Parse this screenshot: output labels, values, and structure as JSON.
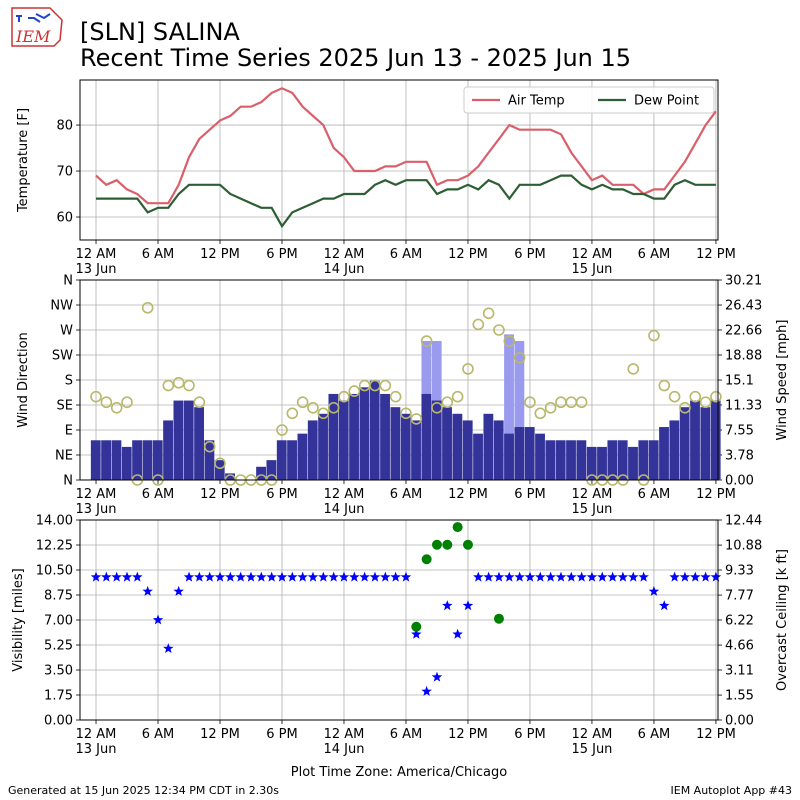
{
  "header": {
    "logo": "IEM",
    "title": "[SLN] SALINA",
    "subtitle": "Recent Time Series 2025 Jun 13 - 2025 Jun 15"
  },
  "footer": {
    "left": "Generated at 15 Jun 2025 12:34 PM CDT in 2.30s",
    "right": "IEM Autoplot App #43"
  },
  "chart_data": [
    {
      "type": "line",
      "ylabel": "Temperature [F]",
      "grid": true,
      "legend": "upper right",
      "xlim": [
        "2025-06-12 22:27",
        "2025-06-15 12:12"
      ],
      "xticks": [
        {
          "value": "2025-06-13 00:00",
          "label": "12 AM\n13 Jun"
        },
        {
          "value": "2025-06-13 06:00",
          "label": "6 AM"
        },
        {
          "value": "2025-06-13 12:00",
          "label": "12 PM"
        },
        {
          "value": "2025-06-13 18:00",
          "label": "6 PM"
        },
        {
          "value": "2025-06-14 00:00",
          "label": "12 AM\n14 Jun"
        },
        {
          "value": "2025-06-14 06:00",
          "label": "6 AM"
        },
        {
          "value": "2025-06-14 12:00",
          "label": "12 PM"
        },
        {
          "value": "2025-06-14 18:00",
          "label": "6 PM"
        },
        {
          "value": "2025-06-15 00:00",
          "label": "12 AM\n15 Jun"
        },
        {
          "value": "2025-06-15 06:00",
          "label": "6 AM"
        },
        {
          "value": "2025-06-15 12:00",
          "label": "12 PM"
        }
      ],
      "ylim": [
        55,
        89.8
      ],
      "yticks": [
        60,
        70,
        80
      ],
      "x": [
        "2025-06-13 00:00",
        "2025-06-13 01:00",
        "2025-06-13 02:00",
        "2025-06-13 03:00",
        "2025-06-13 04:00",
        "2025-06-13 05:00",
        "2025-06-13 06:00",
        "2025-06-13 07:00",
        "2025-06-13 08:00",
        "2025-06-13 09:00",
        "2025-06-13 10:00",
        "2025-06-13 11:00",
        "2025-06-13 12:00",
        "2025-06-13 13:00",
        "2025-06-13 14:00",
        "2025-06-13 15:00",
        "2025-06-13 16:00",
        "2025-06-13 17:00",
        "2025-06-13 18:00",
        "2025-06-13 19:00",
        "2025-06-13 20:00",
        "2025-06-13 21:00",
        "2025-06-13 22:00",
        "2025-06-13 23:00",
        "2025-06-14 00:00",
        "2025-06-14 01:00",
        "2025-06-14 02:00",
        "2025-06-14 03:00",
        "2025-06-14 04:00",
        "2025-06-14 05:00",
        "2025-06-14 06:00",
        "2025-06-14 07:00",
        "2025-06-14 08:00",
        "2025-06-14 09:00",
        "2025-06-14 10:00",
        "2025-06-14 11:00",
        "2025-06-14 12:00",
        "2025-06-14 13:00",
        "2025-06-14 14:00",
        "2025-06-14 15:00",
        "2025-06-14 16:00",
        "2025-06-14 17:00",
        "2025-06-14 18:00",
        "2025-06-14 19:00",
        "2025-06-14 20:00",
        "2025-06-14 21:00",
        "2025-06-14 22:00",
        "2025-06-14 23:00",
        "2025-06-15 00:00",
        "2025-06-15 01:00",
        "2025-06-15 02:00",
        "2025-06-15 03:00",
        "2025-06-15 04:00",
        "2025-06-15 05:00",
        "2025-06-15 06:00",
        "2025-06-15 07:00",
        "2025-06-15 08:00",
        "2025-06-15 09:00",
        "2025-06-15 10:00",
        "2025-06-15 11:00",
        "2025-06-15 12:00"
      ],
      "series": [
        {
          "name": "Air Temp",
          "color": "#d9606a",
          "type": "line",
          "values": [
            69,
            67,
            68,
            66,
            65,
            63,
            63,
            63,
            67,
            73,
            77,
            79,
            81,
            82,
            84,
            84,
            85,
            87,
            88,
            87,
            84,
            82,
            80,
            75,
            73,
            70,
            70,
            70,
            71,
            71,
            72,
            72,
            72,
            67,
            68,
            68,
            69,
            71,
            74,
            77,
            80,
            79,
            79,
            79,
            79,
            78,
            74,
            71,
            68,
            69,
            67,
            67,
            67,
            65,
            66,
            66,
            69,
            72,
            76,
            80,
            83
          ]
        },
        {
          "name": "Dew Point",
          "color": "#2e5e34",
          "type": "line",
          "values": [
            64,
            64,
            64,
            64,
            64,
            61,
            62,
            62,
            65,
            67,
            67,
            67,
            67,
            65,
            64,
            63,
            62,
            62,
            58,
            61,
            62,
            63,
            64,
            64,
            65,
            65,
            65,
            67,
            68,
            67,
            68,
            68,
            68,
            65,
            66,
            66,
            67,
            66,
            68,
            67,
            64,
            67,
            67,
            67,
            68,
            69,
            69,
            67,
            66,
            67,
            66,
            66,
            65,
            65,
            64,
            64,
            67,
            68,
            67,
            67,
            67
          ]
        }
      ]
    },
    {
      "type": "combo",
      "ylabel": "Wind Direction",
      "y2label": "Wind Speed [mph]",
      "grid": true,
      "xlim": [
        "2025-06-12 22:27",
        "2025-06-15 12:12"
      ],
      "xticks": [
        {
          "value": "2025-06-13 00:00",
          "label": "12 AM\n13 Jun"
        },
        {
          "value": "2025-06-13 06:00",
          "label": "6 AM"
        },
        {
          "value": "2025-06-13 12:00",
          "label": "12 PM"
        },
        {
          "value": "2025-06-13 18:00",
          "label": "6 PM"
        },
        {
          "value": "2025-06-14 00:00",
          "label": "12 AM\n14 Jun"
        },
        {
          "value": "2025-06-14 06:00",
          "label": "6 AM"
        },
        {
          "value": "2025-06-14 12:00",
          "label": "12 PM"
        },
        {
          "value": "2025-06-14 18:00",
          "label": "6 PM"
        },
        {
          "value": "2025-06-15 00:00",
          "label": "12 AM\n15 Jun"
        },
        {
          "value": "2025-06-15 06:00",
          "label": "6 AM"
        },
        {
          "value": "2025-06-15 12:00",
          "label": "12 PM"
        }
      ],
      "ylim": [
        0,
        360
      ],
      "yticks": [
        {
          "value": 0,
          "label": "N"
        },
        {
          "value": 45,
          "label": "NE"
        },
        {
          "value": 90,
          "label": "E"
        },
        {
          "value": 135,
          "label": "SE"
        },
        {
          "value": 180,
          "label": "S"
        },
        {
          "value": 225,
          "label": "SW"
        },
        {
          "value": 270,
          "label": "W"
        },
        {
          "value": 315,
          "label": "NW"
        },
        {
          "value": 360,
          "label": "N"
        }
      ],
      "y2lim": [
        0,
        30.21
      ],
      "y2ticks": [
        {
          "value": 0,
          "label": "0.00"
        },
        3.78,
        7.55,
        11.33,
        15.1,
        18.88,
        22.66,
        26.43,
        30.21
      ],
      "x": [
        "2025-06-13 00:00",
        "2025-06-13 01:00",
        "2025-06-13 02:00",
        "2025-06-13 03:00",
        "2025-06-13 04:00",
        "2025-06-13 05:00",
        "2025-06-13 06:00",
        "2025-06-13 07:00",
        "2025-06-13 08:00",
        "2025-06-13 09:00",
        "2025-06-13 10:00",
        "2025-06-13 11:00",
        "2025-06-13 12:00",
        "2025-06-13 13:00",
        "2025-06-13 14:00",
        "2025-06-13 15:00",
        "2025-06-13 16:00",
        "2025-06-13 17:00",
        "2025-06-13 18:00",
        "2025-06-13 19:00",
        "2025-06-13 20:00",
        "2025-06-13 21:00",
        "2025-06-13 22:00",
        "2025-06-13 23:00",
        "2025-06-14 00:00",
        "2025-06-14 01:00",
        "2025-06-14 02:00",
        "2025-06-14 03:00",
        "2025-06-14 04:00",
        "2025-06-14 05:00",
        "2025-06-14 06:00",
        "2025-06-14 07:00",
        "2025-06-14 08:00",
        "2025-06-14 09:00",
        "2025-06-14 10:00",
        "2025-06-14 11:00",
        "2025-06-14 12:00",
        "2025-06-14 13:00",
        "2025-06-14 14:00",
        "2025-06-14 15:00",
        "2025-06-14 16:00",
        "2025-06-14 17:00",
        "2025-06-14 18:00",
        "2025-06-14 19:00",
        "2025-06-14 20:00",
        "2025-06-14 21:00",
        "2025-06-14 22:00",
        "2025-06-14 23:00",
        "2025-06-15 00:00",
        "2025-06-15 01:00",
        "2025-06-15 02:00",
        "2025-06-15 03:00",
        "2025-06-15 04:00",
        "2025-06-15 05:00",
        "2025-06-15 06:00",
        "2025-06-15 07:00",
        "2025-06-15 08:00",
        "2025-06-15 09:00",
        "2025-06-15 10:00",
        "2025-06-15 11:00",
        "2025-06-15 12:00"
      ],
      "series": [
        {
          "color": "#9a9aee",
          "type": "bar",
          "axis": "y2",
          "values": [
            null,
            null,
            null,
            null,
            null,
            null,
            null,
            null,
            null,
            null,
            null,
            null,
            null,
            null,
            null,
            null,
            null,
            null,
            null,
            null,
            null,
            null,
            null,
            null,
            null,
            null,
            null,
            null,
            null,
            null,
            null,
            null,
            21,
            21,
            null,
            null,
            null,
            null,
            null,
            null,
            22,
            21,
            null,
            null,
            null,
            null,
            null,
            null,
            null,
            null,
            null,
            null,
            null,
            null,
            null,
            null,
            null,
            null,
            null,
            null,
            null
          ]
        },
        {
          "color": "#333399",
          "type": "bar",
          "axis": "y2",
          "values": [
            6,
            6,
            6,
            5,
            6,
            6,
            6,
            9,
            12,
            12,
            11,
            6,
            3,
            1,
            0,
            0,
            2,
            3,
            6,
            6,
            7,
            9,
            10,
            13,
            12,
            13,
            14,
            15,
            13,
            11,
            10,
            9,
            13,
            12,
            11,
            10,
            9,
            7,
            10,
            9,
            7,
            8,
            8,
            7,
            6,
            6,
            6,
            6,
            5,
            5,
            6,
            6,
            5,
            6,
            6,
            8,
            9,
            11,
            12,
            11,
            12
          ]
        },
        {
          "color": "#b8b86b",
          "type": "scatter",
          "marker": "open-circle",
          "values": [
            150,
            140,
            130,
            140,
            0,
            310,
            0,
            170,
            175,
            170,
            140,
            60,
            30,
            0,
            0,
            0,
            0,
            0,
            90,
            120,
            140,
            130,
            120,
            130,
            150,
            160,
            170,
            170,
            170,
            150,
            120,
            110,
            250,
            130,
            140,
            150,
            200,
            280,
            300,
            270,
            250,
            220,
            140,
            120,
            130,
            140,
            140,
            140,
            0,
            0,
            0,
            0,
            200,
            0,
            260,
            170,
            150,
            130,
            150,
            140,
            150
          ]
        }
      ]
    },
    {
      "type": "combo",
      "ylabel": "Visibility [miles]",
      "y2label": "Overcast Ceiling [k ft]",
      "xlabel": "Plot Time Zone: America/Chicago",
      "grid": true,
      "xlim": [
        "2025-06-12 22:27",
        "2025-06-15 12:12"
      ],
      "xticks": [
        {
          "value": "2025-06-13 00:00",
          "label": "12 AM\n13 Jun"
        },
        {
          "value": "2025-06-13 06:00",
          "label": "6 AM"
        },
        {
          "value": "2025-06-13 12:00",
          "label": "12 PM"
        },
        {
          "value": "2025-06-13 18:00",
          "label": "6 PM"
        },
        {
          "value": "2025-06-14 00:00",
          "label": "12 AM\n14 Jun"
        },
        {
          "value": "2025-06-14 06:00",
          "label": "6 AM"
        },
        {
          "value": "2025-06-14 12:00",
          "label": "12 PM"
        },
        {
          "value": "2025-06-14 18:00",
          "label": "6 PM"
        },
        {
          "value": "2025-06-15 00:00",
          "label": "12 AM\n15 Jun"
        },
        {
          "value": "2025-06-15 06:00",
          "label": "6 AM"
        },
        {
          "value": "2025-06-15 12:00",
          "label": "12 PM"
        }
      ],
      "ylim": [
        0,
        14
      ],
      "yticks": [
        {
          "value": 0,
          "label": "0.00"
        },
        1.75,
        {
          "value": 3.5,
          "label": "3.50"
        },
        5.25,
        {
          "value": 7,
          "label": "7.00"
        },
        8.75,
        {
          "value": 10.5,
          "label": "10.50"
        },
        12.25,
        {
          "value": 14,
          "label": "14.00"
        }
      ],
      "y2lim": [
        0,
        12.44
      ],
      "y2ticks": [
        {
          "value": 0,
          "label": "0.00"
        },
        1.55,
        3.11,
        4.66,
        6.22,
        7.77,
        9.33,
        10.88,
        12.44
      ],
      "x": [
        "2025-06-13 00:00",
        "2025-06-13 01:00",
        "2025-06-13 02:00",
        "2025-06-13 03:00",
        "2025-06-13 04:00",
        "2025-06-13 05:00",
        "2025-06-13 06:00",
        "2025-06-13 07:00",
        "2025-06-13 08:00",
        "2025-06-13 09:00",
        "2025-06-13 10:00",
        "2025-06-13 11:00",
        "2025-06-13 12:00",
        "2025-06-13 13:00",
        "2025-06-13 14:00",
        "2025-06-13 15:00",
        "2025-06-13 16:00",
        "2025-06-13 17:00",
        "2025-06-13 18:00",
        "2025-06-13 19:00",
        "2025-06-13 20:00",
        "2025-06-13 21:00",
        "2025-06-13 22:00",
        "2025-06-13 23:00",
        "2025-06-14 00:00",
        "2025-06-14 01:00",
        "2025-06-14 02:00",
        "2025-06-14 03:00",
        "2025-06-14 04:00",
        "2025-06-14 05:00",
        "2025-06-14 06:00",
        "2025-06-14 07:00",
        "2025-06-14 08:00",
        "2025-06-14 09:00",
        "2025-06-14 10:00",
        "2025-06-14 11:00",
        "2025-06-14 12:00",
        "2025-06-14 13:00",
        "2025-06-14 14:00",
        "2025-06-14 15:00",
        "2025-06-14 16:00",
        "2025-06-14 17:00",
        "2025-06-14 18:00",
        "2025-06-14 19:00",
        "2025-06-14 20:00",
        "2025-06-14 21:00",
        "2025-06-14 22:00",
        "2025-06-14 23:00",
        "2025-06-15 00:00",
        "2025-06-15 01:00",
        "2025-06-15 02:00",
        "2025-06-15 03:00",
        "2025-06-15 04:00",
        "2025-06-15 05:00",
        "2025-06-15 06:00",
        "2025-06-15 07:00",
        "2025-06-15 08:00",
        "2025-06-15 09:00",
        "2025-06-15 10:00",
        "2025-06-15 11:00",
        "2025-06-15 12:00"
      ],
      "series": [
        {
          "color": "#0000ff",
          "type": "scatter",
          "marker": "star",
          "values": [
            10,
            10,
            10,
            10,
            10,
            9,
            7,
            5,
            9,
            10,
            10,
            10,
            10,
            10,
            10,
            10,
            10,
            10,
            10,
            10,
            10,
            10,
            10,
            10,
            10,
            10,
            10,
            10,
            10,
            10,
            10,
            6,
            2,
            3,
            8,
            6,
            8,
            10,
            10,
            10,
            10,
            10,
            10,
            10,
            10,
            10,
            10,
            10,
            10,
            10,
            10,
            10,
            10,
            10,
            9,
            8,
            10,
            10,
            10,
            10,
            10
          ]
        },
        {
          "color": "#008000",
          "type": "scatter",
          "marker": "circle",
          "axis": "y2",
          "values": [
            null,
            null,
            null,
            null,
            null,
            null,
            null,
            null,
            null,
            null,
            null,
            null,
            null,
            null,
            null,
            null,
            null,
            null,
            null,
            null,
            null,
            null,
            null,
            null,
            null,
            null,
            null,
            null,
            null,
            null,
            null,
            5.8,
            10.0,
            10.9,
            10.9,
            12.0,
            10.9,
            null,
            null,
            6.3,
            null,
            null,
            null,
            null,
            null,
            null,
            null,
            null,
            null,
            null,
            null,
            null,
            null,
            null,
            null,
            null,
            null,
            null,
            null,
            null,
            null
          ]
        }
      ]
    }
  ]
}
